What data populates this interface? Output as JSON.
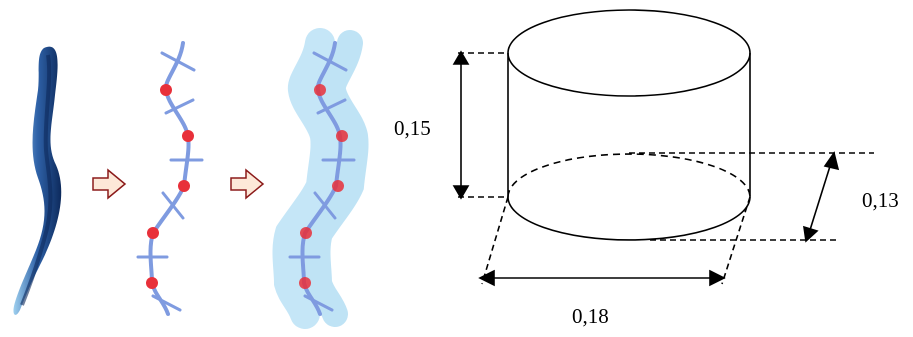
{
  "figure": {
    "colors": {
      "worm_dark": "#0d2a5c",
      "worm_light": "#9fd0ef",
      "skeleton": "#7f9be0",
      "node": "#e8303a",
      "body_fill": "#bfe3f5",
      "arrow_outline": "#8b1a1a",
      "line": "#000000"
    },
    "dimensions": {
      "height_label": "0,15",
      "offset_label": "0,13",
      "diameter_label": "0,18"
    }
  }
}
